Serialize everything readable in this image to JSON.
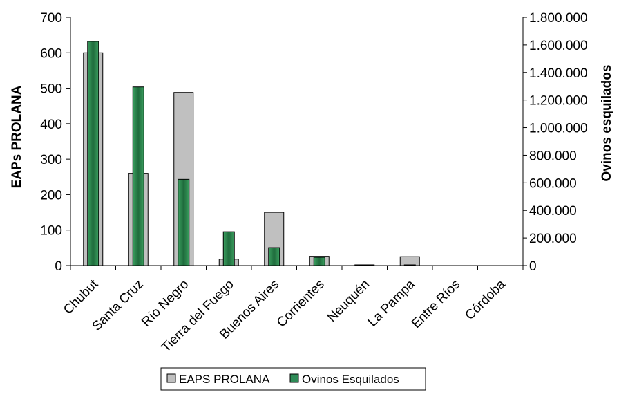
{
  "chart_data": {
    "type": "bar",
    "categories": [
      "Chubut",
      "Santa Cruz",
      "Río Negro",
      "Tierra del Fuego",
      "Buenos Aires",
      "Corrientes",
      "Neuquén",
      "La Pampa",
      "Entre Ríos",
      "Córdoba"
    ],
    "series": [
      {
        "name": "EAPS PROLANA",
        "axis": "left",
        "color": "#c0c0c0",
        "values": [
          600,
          260,
          488,
          18,
          150,
          26,
          2,
          25,
          0,
          0
        ]
      },
      {
        "name": "Ovinos Esquilados",
        "axis": "right",
        "color": "#2e8b57",
        "values": [
          1625000,
          1295000,
          625000,
          245000,
          130000,
          60000,
          3000,
          5000,
          0,
          0
        ]
      }
    ],
    "ylabel": "EAPs PROLANA",
    "y2label": "Ovinos esquilados",
    "ylim": [
      0,
      700
    ],
    "y2lim": [
      0,
      1800000
    ],
    "yticks": [
      "0",
      "100",
      "200",
      "300",
      "400",
      "500",
      "600",
      "700"
    ],
    "y2ticks": [
      "0",
      "200.000",
      "400.000",
      "600.000",
      "800.000",
      "1.000.000",
      "1.200.000",
      "1.400.000",
      "1.600.000",
      "1.800.000"
    ],
    "grid": false,
    "legend": "bottom"
  }
}
